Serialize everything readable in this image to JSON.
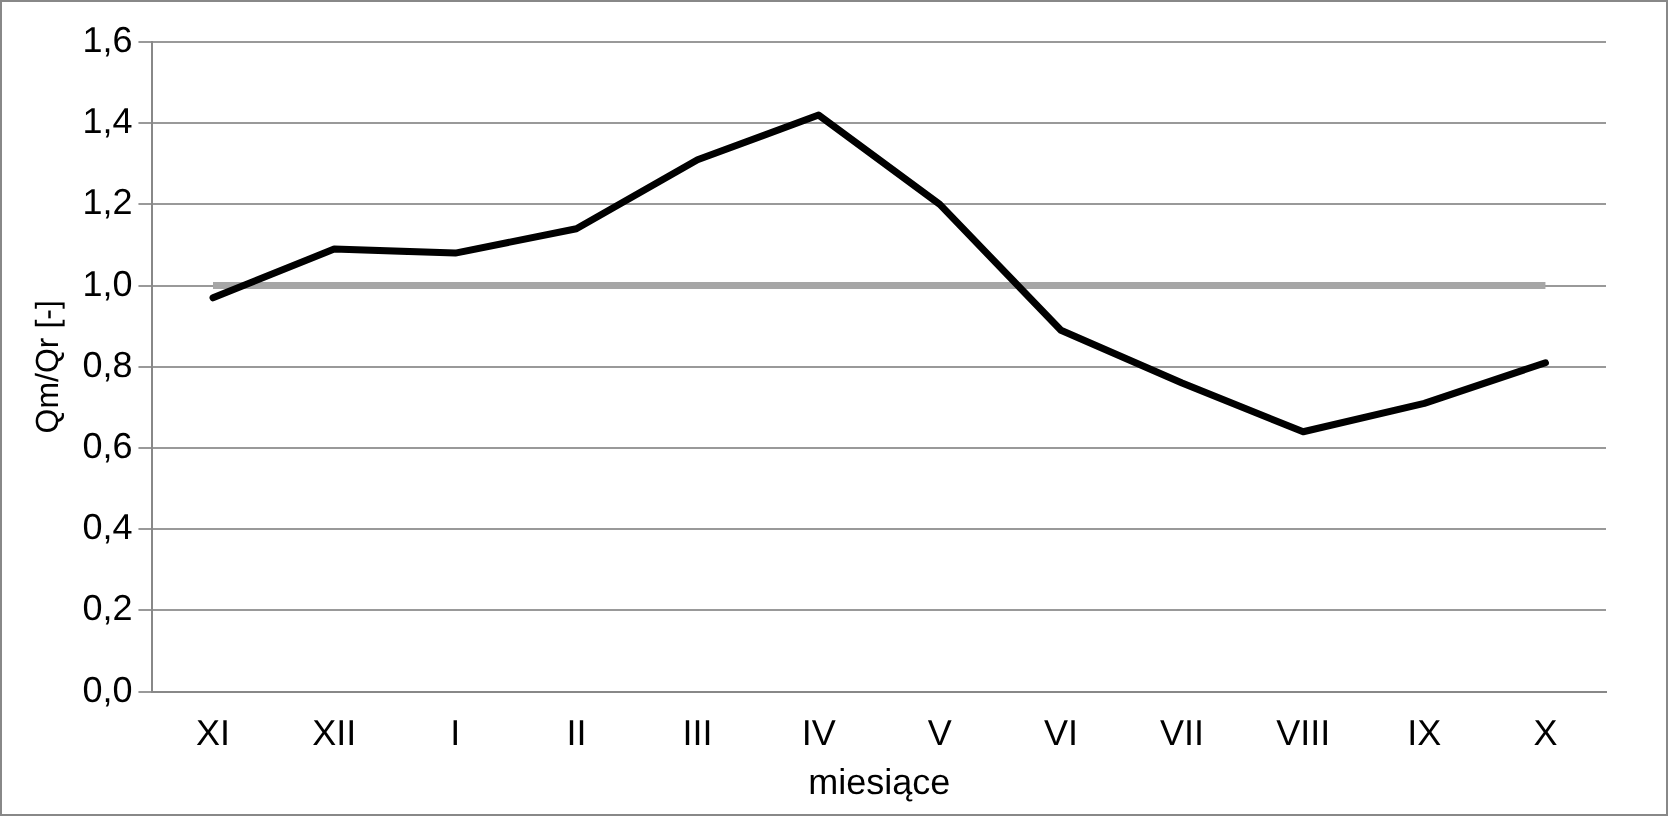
{
  "chart_data": {
    "type": "line",
    "xlabel": "miesiące",
    "ylabel": "Qm/Qr [-]",
    "categories": [
      "XI",
      "XII",
      "I",
      "II",
      "III",
      "IV",
      "V",
      "VI",
      "VII",
      "VIII",
      "IX",
      "X"
    ],
    "series": [
      {
        "color": "#000000",
        "values": [
          0.97,
          1.09,
          1.08,
          1.14,
          1.31,
          1.42,
          1.2,
          0.89,
          0.76,
          0.64,
          0.71,
          0.81
        ]
      }
    ],
    "ylim": [
      0,
      1.6
    ],
    "yticks": [
      {
        "value": 0,
        "label": "0,0"
      },
      {
        "value": 0.2,
        "label": "0,2"
      },
      {
        "value": 0.4,
        "label": "0,4"
      },
      {
        "value": 0.6,
        "label": "0,6"
      },
      {
        "value": 0.8,
        "label": "0,8"
      },
      {
        "value": 1,
        "label": "1,0"
      },
      {
        "value": 1.2,
        "label": "1,2"
      },
      {
        "value": 1.4,
        "label": "1,4"
      },
      {
        "value": 1.6,
        "label": "1,6"
      }
    ],
    "ref_lines": [
      {
        "axis": "y",
        "value": 1,
        "color": "#a6a6a6"
      }
    ],
    "grid": "y",
    "legend": false,
    "marker": "none",
    "line_style": "solid"
  }
}
